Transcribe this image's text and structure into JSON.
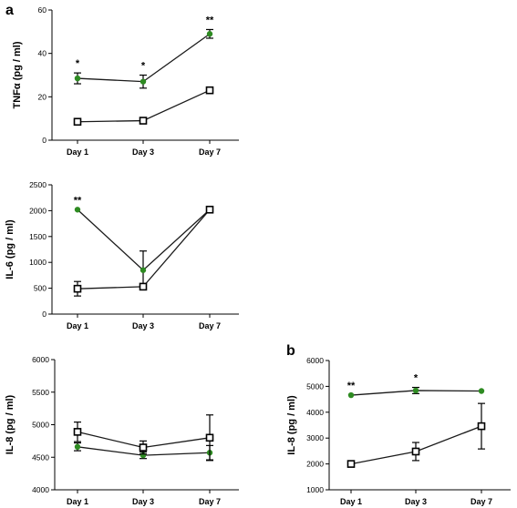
{
  "panel_labels": [
    "a",
    "b"
  ],
  "colors": {
    "treated": "#2e8b22",
    "control": "#000000"
  },
  "chart_data": [
    {
      "type": "line",
      "panel": "a",
      "categories": [
        "Day 1",
        "Day 3",
        "Day 7"
      ],
      "ylabel": "TNFα (pg / ml)",
      "ylim": [
        0,
        60
      ],
      "yticks": [
        0,
        20,
        40,
        60
      ],
      "series": [
        {
          "marker": "circle",
          "color": "#2e8b22",
          "values": [
            28.5,
            27,
            49
          ],
          "errors": [
            2.5,
            3,
            2
          ]
        },
        {
          "marker": "square",
          "color": "#000000",
          "values": [
            8.5,
            9,
            23
          ],
          "errors": [
            0.8,
            0.8,
            1
          ]
        }
      ],
      "significance": [
        "*",
        "*",
        "**"
      ]
    },
    {
      "type": "line",
      "panel": "a",
      "categories": [
        "Day 1",
        "Day 3",
        "Day 7"
      ],
      "ylabel": "IL-6 (pg / ml)",
      "ylim": [
        0,
        2500
      ],
      "yticks": [
        0,
        500,
        1000,
        1500,
        2000,
        2500
      ],
      "series": [
        {
          "marker": "circle",
          "color": "#2e8b22",
          "values": [
            2020,
            850,
            2020
          ],
          "errors": [
            0,
            370,
            0
          ]
        },
        {
          "marker": "square",
          "color": "#000000",
          "values": [
            490,
            530,
            2020
          ],
          "errors": [
            140,
            50,
            20
          ]
        }
      ],
      "significance": [
        "**",
        "",
        ""
      ]
    },
    {
      "type": "line",
      "panel": "a",
      "categories": [
        "Day 1",
        "Day 3",
        "Day 7"
      ],
      "ylabel": "IL-8 (pg / ml)",
      "ylim": [
        4000,
        6000
      ],
      "yticks": [
        4000,
        4500,
        5000,
        5500,
        6000
      ],
      "series": [
        {
          "marker": "circle",
          "color": "#2e8b22",
          "values": [
            4660,
            4530,
            4570
          ],
          "errors": [
            60,
            50,
            110
          ]
        },
        {
          "marker": "square",
          "color": "#000000",
          "values": [
            4890,
            4650,
            4800
          ],
          "errors": [
            150,
            100,
            350
          ]
        }
      ],
      "significance": [
        "",
        "",
        ""
      ]
    },
    {
      "type": "line",
      "panel": "b",
      "categories": [
        "Day 1",
        "Day 3",
        "Day 7"
      ],
      "ylabel": "IL-8 (pg / ml)",
      "ylim": [
        1000,
        6000
      ],
      "yticks": [
        1000,
        2000,
        3000,
        4000,
        5000,
        6000
      ],
      "series": [
        {
          "marker": "circle",
          "color": "#2e8b22",
          "values": [
            4660,
            4840,
            4820
          ],
          "errors": [
            0,
            120,
            0
          ]
        },
        {
          "marker": "square",
          "color": "#000000",
          "values": [
            2000,
            2480,
            3460
          ],
          "errors": [
            120,
            350,
            880
          ]
        }
      ],
      "significance": [
        "**",
        "*",
        ""
      ]
    }
  ]
}
